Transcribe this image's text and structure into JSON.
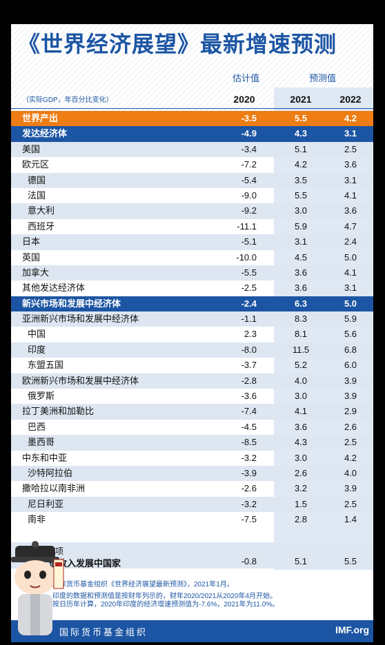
{
  "title": "《世界经济展望》最新增速预测",
  "header": {
    "estimate_label": "估计值",
    "projection_label": "预测值",
    "unit_note": "（实际GDP，年百分比变化）",
    "years": [
      "2020",
      "2021",
      "2022"
    ]
  },
  "rows": [
    {
      "label": "世界产出",
      "v2020": "-3.5",
      "v2021": "5.5",
      "v2022": "4.2",
      "style": "world"
    },
    {
      "label": "发达经济体",
      "v2020": "-4.9",
      "v2021": "4.3",
      "v2022": "3.1",
      "style": "major"
    },
    {
      "label": "美国",
      "v2020": "-3.4",
      "v2021": "5.1",
      "v2022": "2.5",
      "style": "alt"
    },
    {
      "label": "欧元区",
      "v2020": "-7.2",
      "v2021": "4.2",
      "v2022": "3.6",
      "style": ""
    },
    {
      "label": "德国",
      "v2020": "-5.4",
      "v2021": "3.5",
      "v2022": "3.1",
      "style": "alt sub"
    },
    {
      "label": "法国",
      "v2020": "-9.0",
      "v2021": "5.5",
      "v2022": "4.1",
      "style": "sub"
    },
    {
      "label": "意大利",
      "v2020": "-9.2",
      "v2021": "3.0",
      "v2022": "3.6",
      "style": "alt sub"
    },
    {
      "label": "西班牙",
      "v2020": "-11.1",
      "v2021": "5.9",
      "v2022": "4.7",
      "style": "sub"
    },
    {
      "label": "日本",
      "v2020": "-5.1",
      "v2021": "3.1",
      "v2022": "2.4",
      "style": "alt"
    },
    {
      "label": "英国",
      "v2020": "-10.0",
      "v2021": "4.5",
      "v2022": "5.0",
      "style": ""
    },
    {
      "label": "加拿大",
      "v2020": "-5.5",
      "v2021": "3.6",
      "v2022": "4.1",
      "style": "alt"
    },
    {
      "label": "其他发达经济体",
      "v2020": "-2.5",
      "v2021": "3.6",
      "v2022": "3.1",
      "style": ""
    },
    {
      "label": "新兴市场和发展中经济体",
      "v2020": "-2.4",
      "v2021": "6.3",
      "v2022": "5.0",
      "style": "major"
    },
    {
      "label": "亚洲新兴市场和发展中经济体",
      "v2020": "-1.1",
      "v2021": "8.3",
      "v2022": "5.9",
      "style": "alt"
    },
    {
      "label": "中国",
      "v2020": "2.3",
      "v2021": "8.1",
      "v2022": "5.6",
      "style": "sub"
    },
    {
      "label": "印度",
      "v2020": "-8.0",
      "v2021": "11.5",
      "v2022": "6.8",
      "style": "alt sub"
    },
    {
      "label": "东盟五国",
      "v2020": "-3.7",
      "v2021": "5.2",
      "v2022": "6.0",
      "style": "sub"
    },
    {
      "label": "欧洲新兴市场和发展中经济体",
      "v2020": "-2.8",
      "v2021": "4.0",
      "v2022": "3.9",
      "style": "alt"
    },
    {
      "label": "俄罗斯",
      "v2020": "-3.6",
      "v2021": "3.0",
      "v2022": "3.9",
      "style": "sub"
    },
    {
      "label": "拉丁美洲和加勒比",
      "v2020": "-7.4",
      "v2021": "4.1",
      "v2022": "2.9",
      "style": "alt"
    },
    {
      "label": "巴西",
      "v2020": "-4.5",
      "v2021": "3.6",
      "v2022": "2.6",
      "style": "sub"
    },
    {
      "label": "墨西哥",
      "v2020": "-8.5",
      "v2021": "4.3",
      "v2022": "2.5",
      "style": "alt sub"
    },
    {
      "label": "中东和中亚",
      "v2020": "-3.2",
      "v2021": "3.0",
      "v2022": "4.2",
      "style": ""
    },
    {
      "label": "沙特阿拉伯",
      "v2020": "-3.9",
      "v2021": "2.6",
      "v2022": "4.0",
      "style": "alt sub"
    },
    {
      "label": "撒哈拉以南非洲",
      "v2020": "-2.6",
      "v2021": "3.2",
      "v2022": "3.9",
      "style": ""
    },
    {
      "label": "尼日利亚",
      "v2020": "-3.2",
      "v2021": "1.5",
      "v2022": "2.5",
      "style": "alt sub"
    },
    {
      "label": "南非",
      "v2020": "-7.5",
      "v2021": "2.8",
      "v2022": "1.4",
      "style": "sub"
    }
  ],
  "memo": {
    "label": "备忘项",
    "name": "低收入发展中国家",
    "v2020": "-0.8",
    "v2021": "5.1",
    "v2022": "5.5"
  },
  "notes": [
    "国际货币基金组织《世界经济展望最新预测》，2021年1月。",
    "印度的数据和预测值是按财年列示的，财年2020/2021从2020年4月开始。",
    "按日历年计算，2020年印度的经济增速预测值为-7.6%，2021年为11.0%。"
  ],
  "footer": {
    "org_name": "国际货币基金组织",
    "site": "IMF.org"
  },
  "colors": {
    "imf_blue": "#1c55a3",
    "orange": "#ed7d14",
    "light_band": "#dde6f1"
  }
}
